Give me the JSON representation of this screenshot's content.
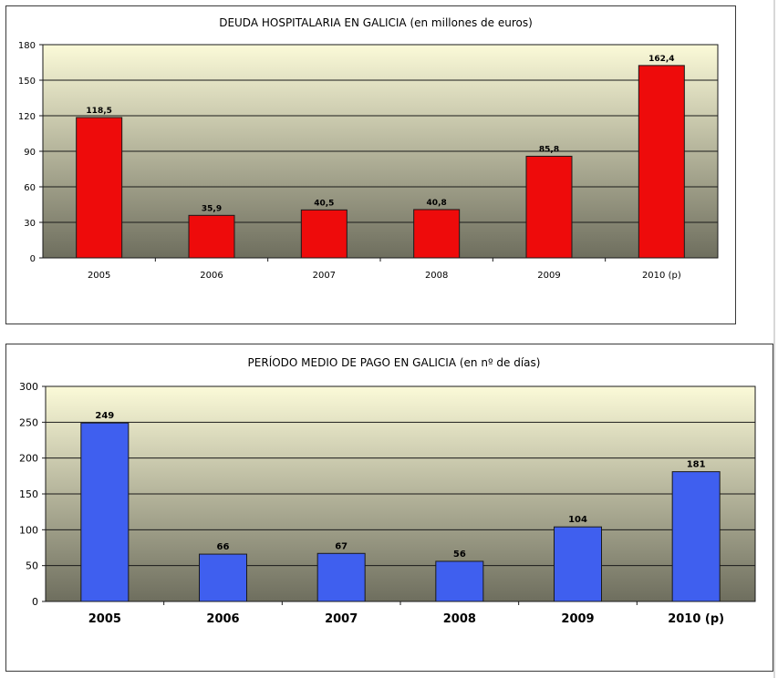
{
  "colors": {
    "chart1_bar": "#ee0b0b",
    "chart2_bar": "#3f5fef",
    "plot_top": "#fbfad8",
    "plot_bottom": "#6e6e5e",
    "grid": "#1a1a1a"
  },
  "chart_data": [
    {
      "type": "bar",
      "title": "DEUDA HOSPITALARIA EN GALICIA (en millones de euros)",
      "categories": [
        "2005",
        "2006",
        "2007",
        "2008",
        "2009",
        "2010 (p)"
      ],
      "values": [
        118.5,
        35.9,
        40.5,
        40.8,
        85.8,
        162.4
      ],
      "data_labels": [
        "118,5",
        "35,9",
        "40,5",
        "40,8",
        "85,8",
        "162,4"
      ],
      "ylim": [
        0,
        180
      ],
      "yticks": [
        0,
        30,
        60,
        90,
        120,
        150,
        180
      ],
      "grid": true
    },
    {
      "type": "bar",
      "title": "PERÍODO MEDIO DE PAGO EN GALICIA (en nº de días)",
      "categories": [
        "2005",
        "2006",
        "2007",
        "2008",
        "2009",
        "2010 (p)"
      ],
      "values": [
        249,
        66,
        67,
        56,
        104,
        181
      ],
      "data_labels": [
        "249",
        "66",
        "67",
        "56",
        "104",
        "181"
      ],
      "ylim": [
        0,
        300
      ],
      "yticks": [
        0,
        50,
        100,
        150,
        200,
        250,
        300
      ],
      "grid": true
    }
  ]
}
